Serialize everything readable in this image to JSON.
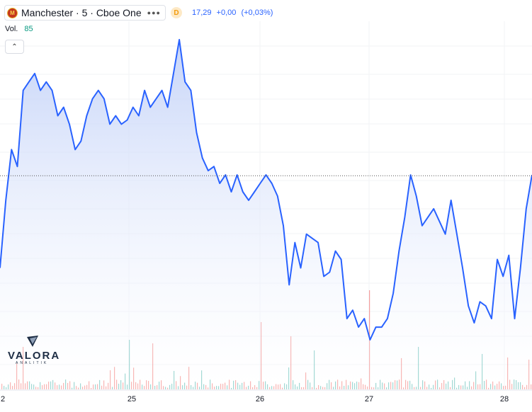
{
  "symbol": {
    "title": "Manchester · 5 · Cboe One",
    "logo_text": "M",
    "more_icon": "more-horizontal-icon",
    "delay_badge": "D"
  },
  "quote": {
    "last": "17,29",
    "change": "+0,00",
    "change_pct": "(+0,03%)",
    "color": "#2962ff"
  },
  "volume": {
    "label": "Vol.",
    "value": "85",
    "color": "#089981"
  },
  "collapse_icon": "chevron-up-icon",
  "watermark": {
    "name": "VALORA",
    "sub": "ANALITIK"
  },
  "colors": {
    "line": "#2962ff",
    "area_top": "#c3d2f8",
    "volume_up": "#26a69a",
    "volume_down": "#ef5350"
  },
  "chart_data": {
    "type": "area",
    "x_tick_labels": [
      "2",
      "25",
      "26",
      "27",
      "28"
    ],
    "current_value": 17.29,
    "series": [
      {
        "values": [
          16.2,
          17.0,
          17.6,
          17.4,
          18.3,
          18.4,
          18.5,
          18.3,
          18.4,
          18.3,
          18.0,
          18.1,
          17.9,
          17.6,
          17.7,
          18.0,
          18.2,
          18.3,
          18.2,
          17.9,
          18.0,
          17.9,
          17.95,
          18.1,
          18.0,
          18.3,
          18.1,
          18.2,
          18.3,
          18.1,
          18.5,
          18.9,
          18.4,
          18.3,
          17.8,
          17.5,
          17.35,
          17.4,
          17.2,
          17.3,
          17.1,
          17.3,
          17.1,
          17.0,
          17.1,
          17.2,
          17.3,
          17.2,
          17.05,
          16.7,
          16.0,
          16.5,
          16.2,
          16.6,
          16.55,
          16.5,
          16.1,
          16.15,
          16.4,
          16.3,
          15.6,
          15.7,
          15.5,
          15.6,
          15.35,
          15.5,
          15.5,
          15.6,
          15.9,
          16.4,
          16.8,
          17.3,
          17.05,
          16.7,
          16.8,
          16.9,
          16.75,
          16.6,
          17.0,
          16.6,
          16.2,
          15.75,
          15.55,
          15.8,
          15.75,
          15.6,
          16.3,
          16.1,
          16.35,
          15.6,
          16.2,
          16.9,
          17.3
        ]
      }
    ]
  }
}
